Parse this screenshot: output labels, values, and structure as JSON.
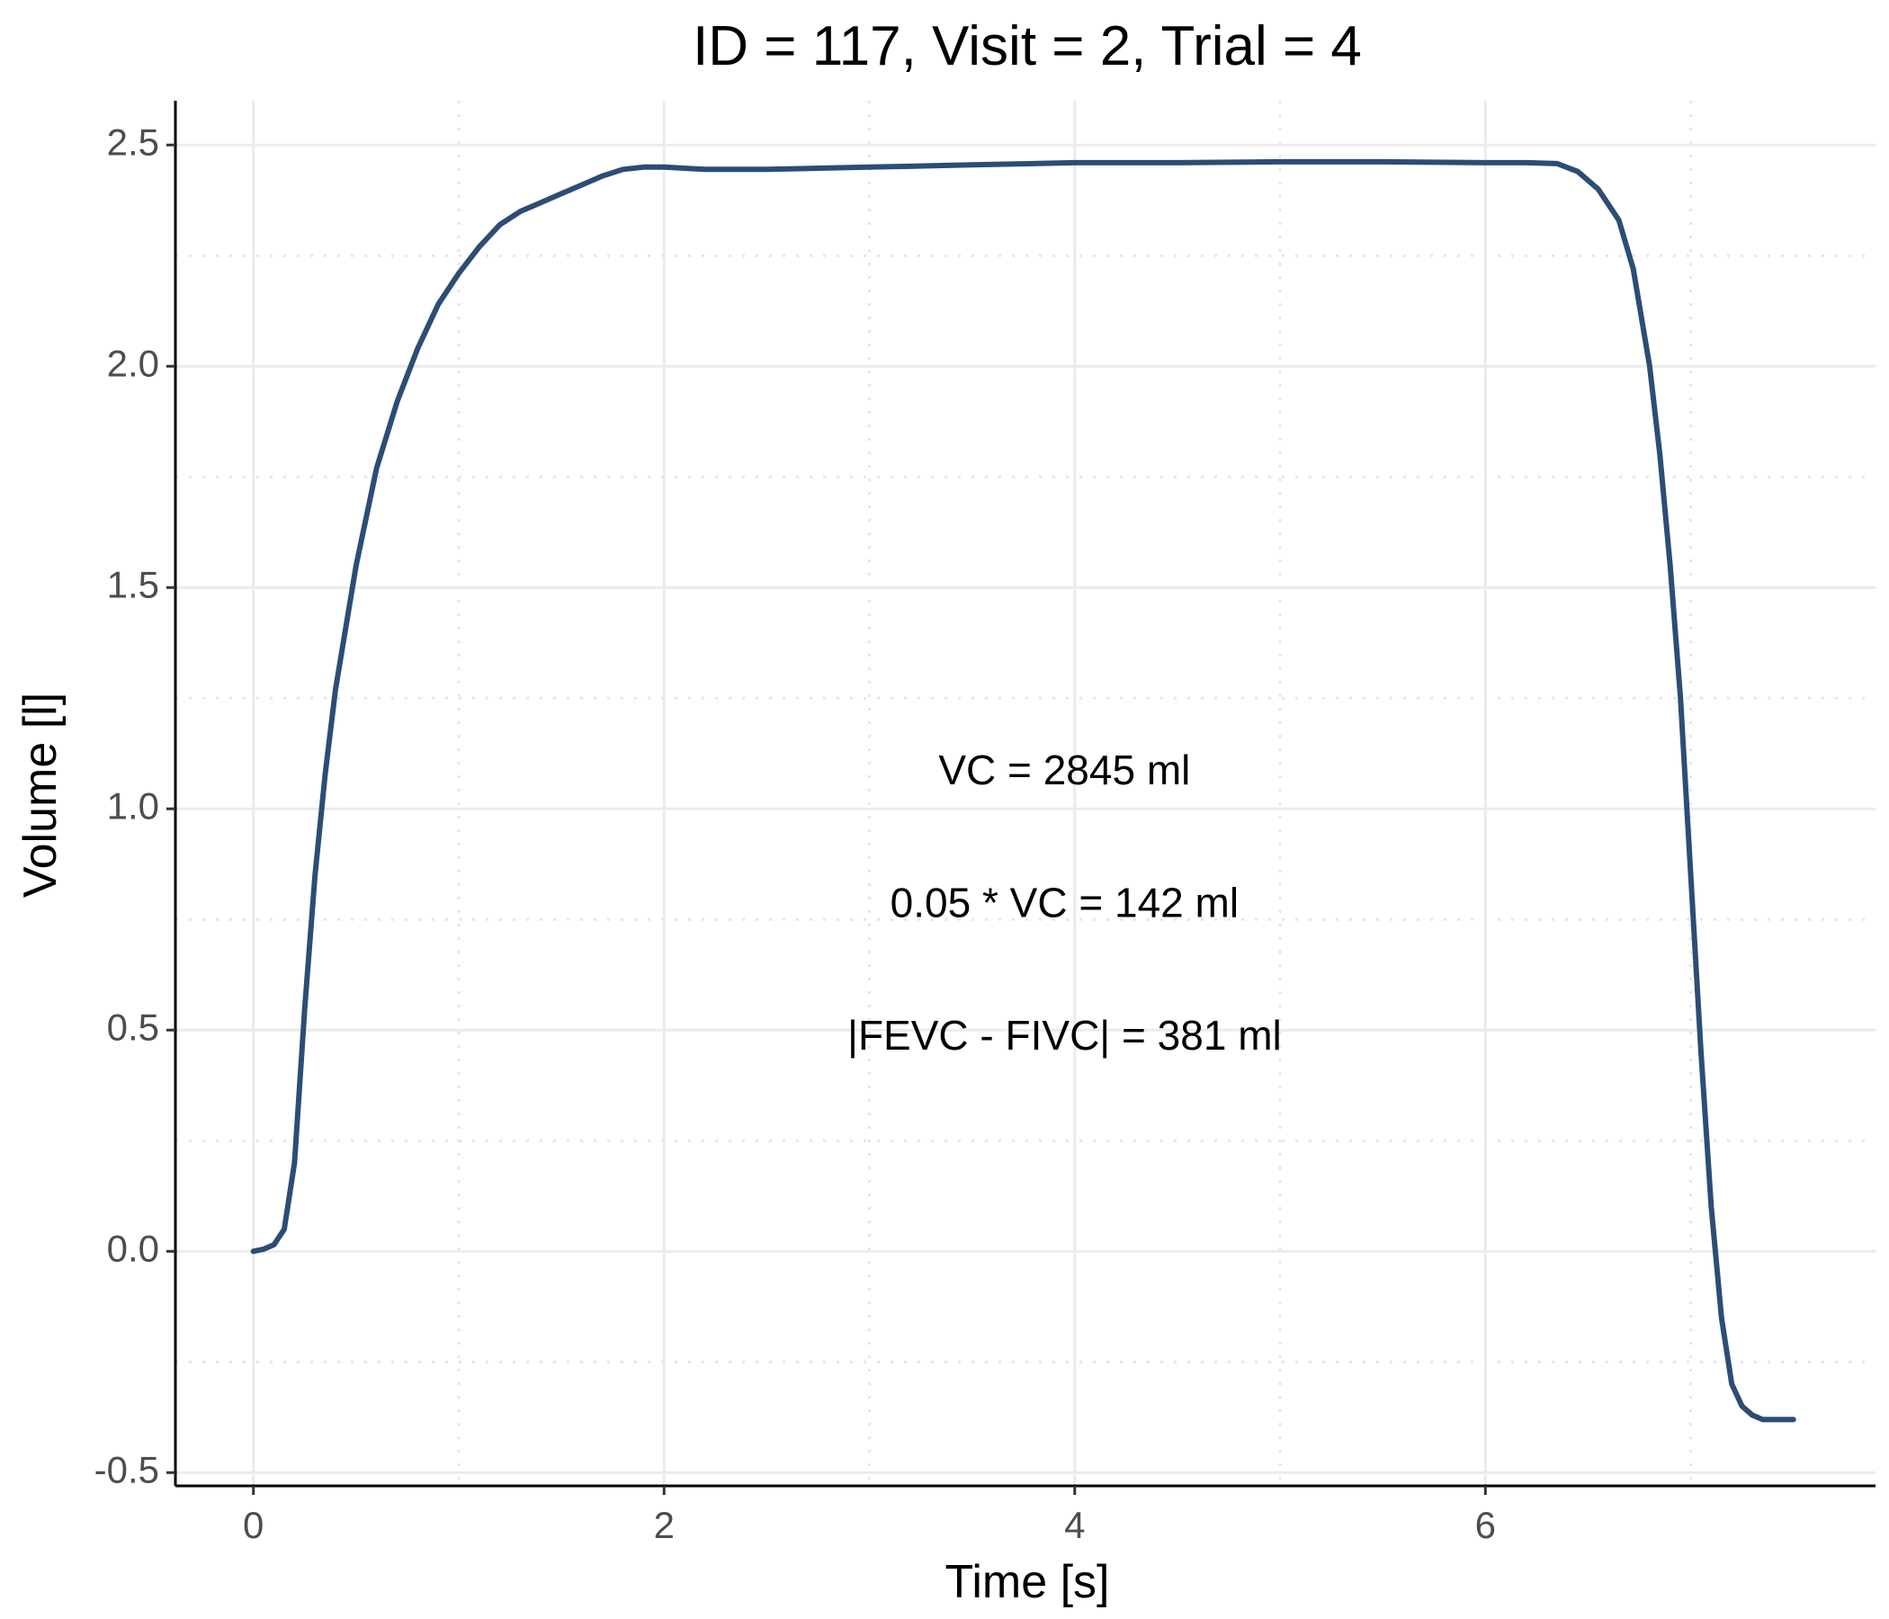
{
  "chart_data": {
    "type": "line",
    "title": "ID = 117, Visit = 2, Trial = 4",
    "xlabel": "Time [s]",
    "ylabel": "Volume [l]",
    "xlim": [
      -0.38,
      7.9
    ],
    "ylim": [
      -0.53,
      2.6
    ],
    "x_ticks": [
      0,
      2,
      4,
      6
    ],
    "x_tick_labels": [
      "0",
      "2",
      "4",
      "6"
    ],
    "x_minor_ticks": [
      1,
      3,
      5,
      7
    ],
    "y_ticks": [
      -0.5,
      0.0,
      0.5,
      1.0,
      1.5,
      2.0,
      2.5
    ],
    "y_tick_labels": [
      "-0.5",
      "0.0",
      "0.5",
      "1.0",
      "1.5",
      "2.0",
      "2.5"
    ],
    "y_minor_ticks": [
      -0.25,
      0.25,
      0.75,
      1.25,
      1.75,
      2.25
    ],
    "grid": true,
    "line_color": "#2c4d74",
    "series": [
      {
        "x": [
          0.0,
          0.05,
          0.1,
          0.15,
          0.2,
          0.25,
          0.3,
          0.35,
          0.4,
          0.5,
          0.6,
          0.7,
          0.8,
          0.9,
          1.0,
          1.1,
          1.2,
          1.3,
          1.4,
          1.5,
          1.6,
          1.7,
          1.8,
          1.9,
          2.0,
          2.2,
          2.5,
          3.0,
          3.5,
          4.0,
          4.5,
          5.0,
          5.5,
          6.0,
          6.2,
          6.35,
          6.45,
          6.55,
          6.65,
          6.72,
          6.8,
          6.85,
          6.9,
          6.95,
          7.0,
          7.05,
          7.1,
          7.15,
          7.2,
          7.25,
          7.3,
          7.35,
          7.4,
          7.45,
          7.5
        ],
        "y": [
          0.0,
          0.005,
          0.015,
          0.05,
          0.2,
          0.55,
          0.85,
          1.08,
          1.27,
          1.55,
          1.77,
          1.92,
          2.04,
          2.14,
          2.21,
          2.27,
          2.32,
          2.35,
          2.37,
          2.39,
          2.41,
          2.43,
          2.445,
          2.45,
          2.45,
          2.445,
          2.445,
          2.45,
          2.455,
          2.46,
          2.46,
          2.462,
          2.462,
          2.46,
          2.46,
          2.458,
          2.44,
          2.4,
          2.33,
          2.22,
          2.0,
          1.8,
          1.55,
          1.25,
          0.85,
          0.45,
          0.1,
          -0.15,
          -0.3,
          -0.35,
          -0.37,
          -0.38,
          -0.38,
          -0.38,
          -0.38
        ]
      }
    ],
    "annotations": [
      {
        "text": "VC = 2845 ml",
        "x": 3.95,
        "y": 1.08
      },
      {
        "text": "0.05 * VC = 142 ml",
        "x": 3.95,
        "y": 0.78
      },
      {
        "text": "|FEVC - FIVC| = 381 ml",
        "x": 3.95,
        "y": 0.48
      }
    ]
  }
}
